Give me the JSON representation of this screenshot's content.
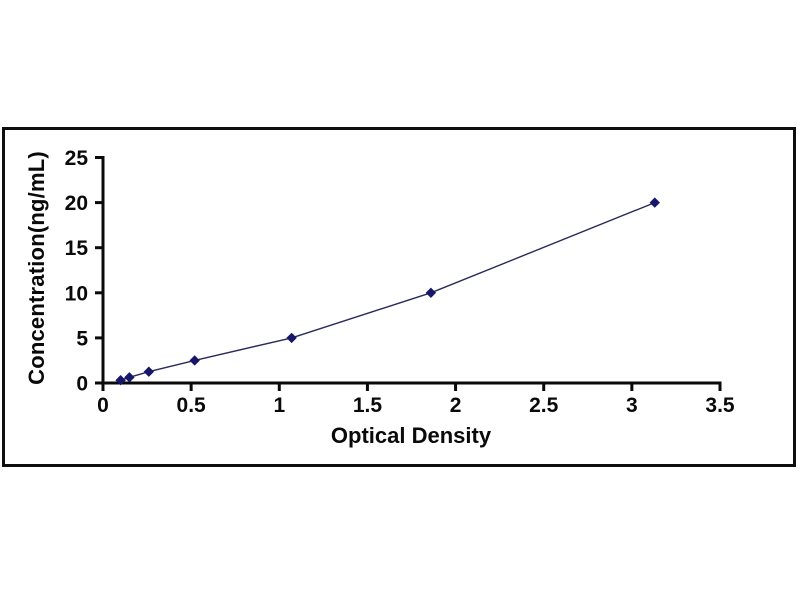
{
  "figure": {
    "background": "#ffffff",
    "frame_border_color": "#0e0e0e"
  },
  "chart_data": {
    "type": "line",
    "title": "",
    "xlabel": "Optical Density",
    "ylabel": "Concentration(ng/mL)",
    "x": [
      0.1,
      0.15,
      0.26,
      0.52,
      1.07,
      1.86,
      3.13
    ],
    "y": [
      0.31,
      0.63,
      1.25,
      2.5,
      5,
      10,
      20
    ],
    "xticks": [
      0,
      0.5,
      1,
      1.5,
      2,
      2.5,
      3,
      3.5
    ],
    "yticks": [
      0,
      5,
      10,
      15,
      20,
      25
    ],
    "xlim": [
      0,
      3.5
    ],
    "ylim": [
      0,
      25
    ],
    "grid": false,
    "legend_position": "none",
    "marker": "diamond",
    "line_color": "#2a2a5c",
    "marker_color": "#16166b",
    "axis_color": "#0a0a0a",
    "tick_label_color": "#0a0a0a"
  }
}
